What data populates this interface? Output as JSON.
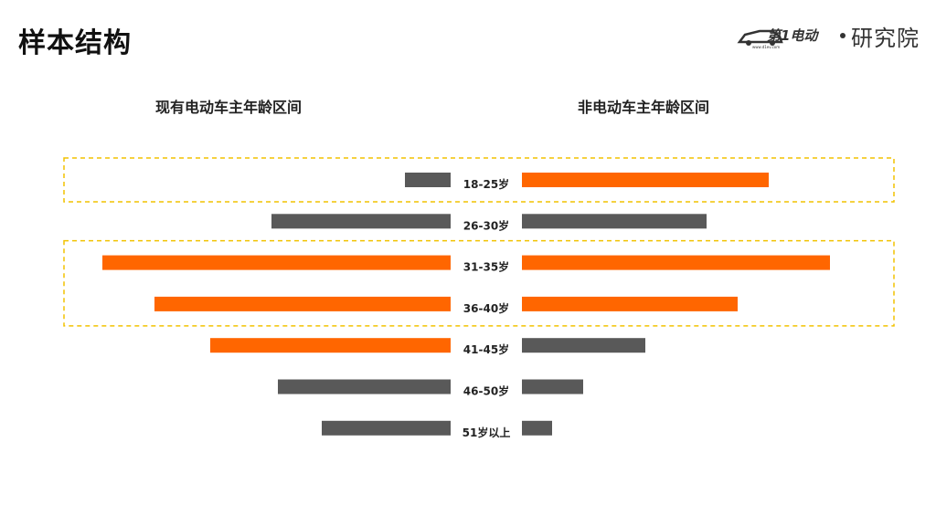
{
  "page": {
    "title": "样本结构"
  },
  "brand": {
    "logo_text": "第1电动",
    "logo_url_text": "www.d1ev.com",
    "name": "研究院",
    "logo_color": "#333333",
    "accent_color": "#ff6600"
  },
  "chart_data": {
    "type": "bar",
    "orientation": "horizontal-butterfly",
    "categories": [
      "18-25岁",
      "26-30岁",
      "31-35岁",
      "36-40岁",
      "41-45岁",
      "46-50岁",
      "51岁以上"
    ],
    "series": [
      {
        "name": "现有电动车主年龄区间",
        "side": "left",
        "values": [
          50,
          196,
          381,
          324,
          263,
          189,
          141
        ],
        "highlight": [
          false,
          false,
          true,
          true,
          true,
          false,
          false
        ]
      },
      {
        "name": "非电动车主年龄区间",
        "side": "right",
        "values": [
          270,
          202,
          337,
          236,
          135,
          67,
          33
        ],
        "highlight": [
          true,
          false,
          true,
          true,
          false,
          false,
          false
        ]
      }
    ],
    "highlight_groups": [
      {
        "categories": [
          "18-25岁"
        ]
      },
      {
        "categories": [
          "31-35岁",
          "36-40岁"
        ]
      }
    ],
    "colors": {
      "highlight": "#ff6600",
      "normal": "#595959",
      "box_border": "#f2c200"
    },
    "axis": "none",
    "grid": false,
    "legend": "column headings above each side"
  }
}
